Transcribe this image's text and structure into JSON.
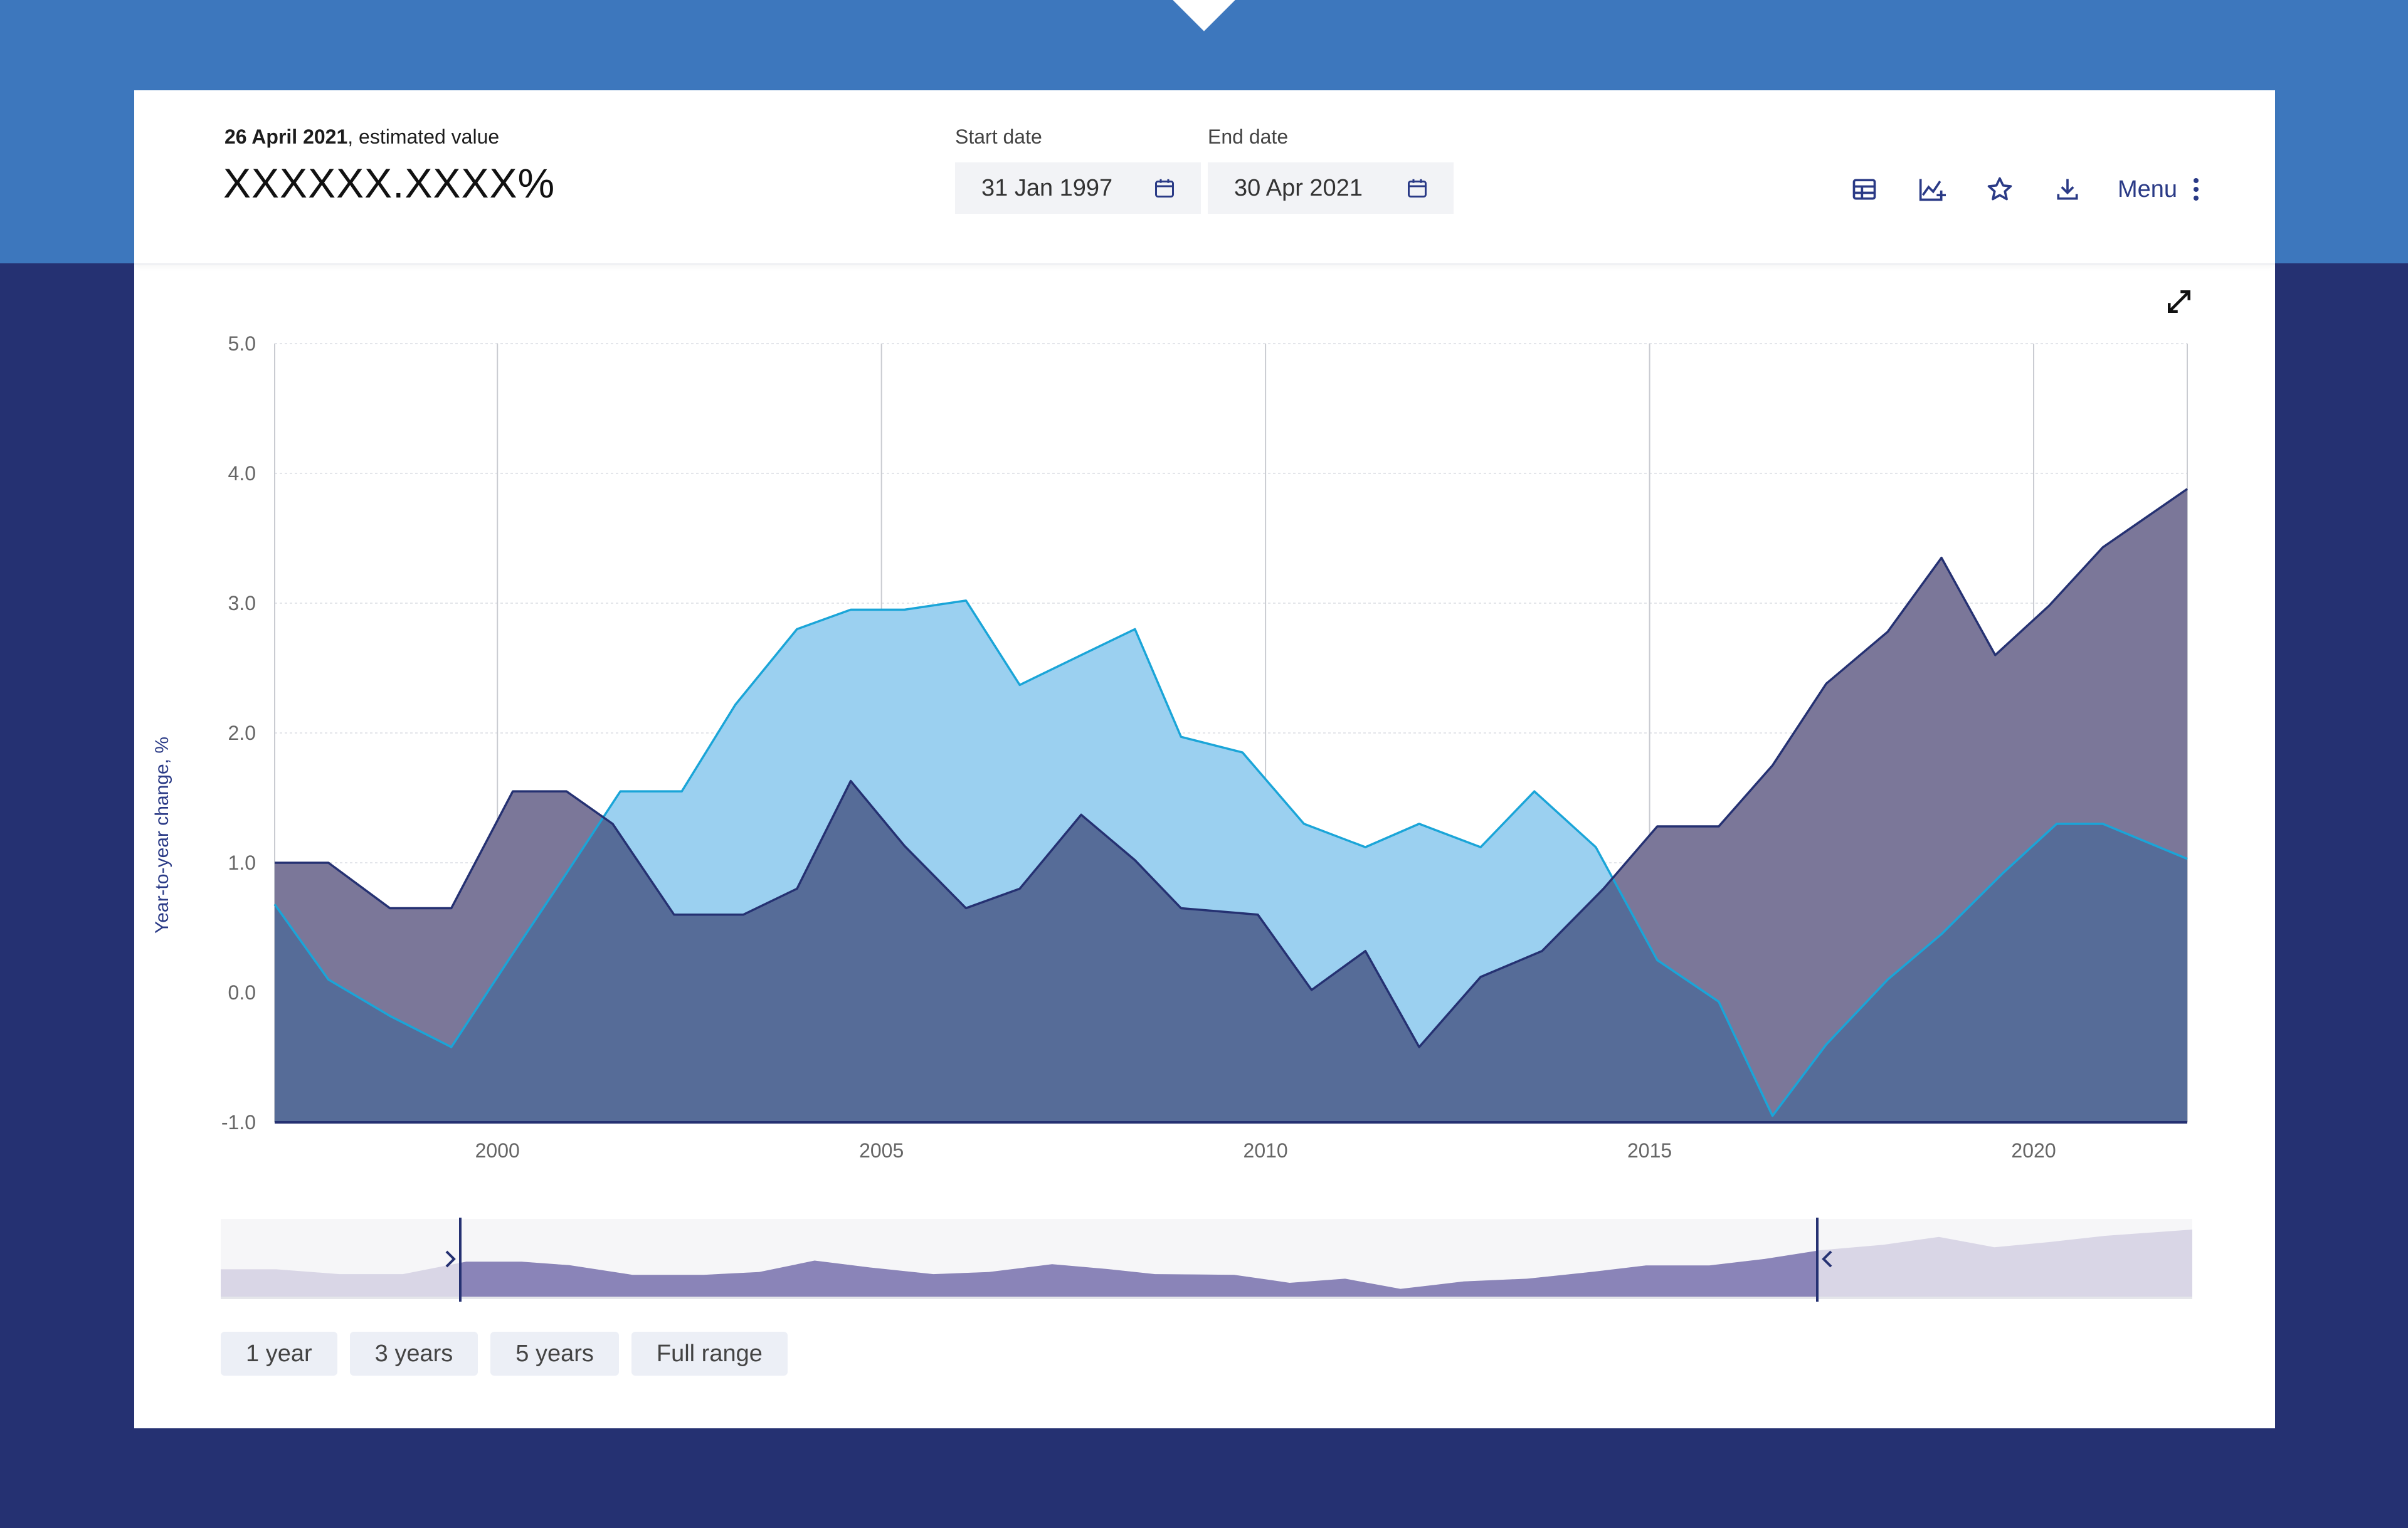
{
  "header": {
    "date_bold": "26 April 2021",
    "date_suffix": ", estimated value",
    "value": "XXXXXX.XXXX%",
    "start_label": "Start date",
    "start_value": "31 Jan 1997",
    "end_label": "End date",
    "end_value": "30 Apr 2021",
    "menu_label": "Menu"
  },
  "icons": [
    "table-icon",
    "chart-add-icon",
    "star-icon",
    "download-icon",
    "more-vertical-icon",
    "expand-icon",
    "calendar-icon"
  ],
  "range_buttons": [
    "1 year",
    "3 years",
    "5 years",
    "Full range"
  ],
  "colors": {
    "top_band": "#3d77bd",
    "background": "#253172",
    "series_dark": "#253172",
    "series_dark_fill": "#7b7799",
    "series_light": "#1aa5d8",
    "series_light_fill": "#9bd0f0",
    "overlap_fill": "#566c98"
  },
  "chart_data": {
    "type": "area",
    "ylabel": "Year-to-year change, %",
    "ylim": [
      -1.0,
      5.0
    ],
    "xlim": [
      1997.1,
      2022.0
    ],
    "y_ticks": [
      "5.0",
      "4.0",
      "3.0",
      "2.0",
      "1.0",
      "0.0",
      "-1.0"
    ],
    "x_ticks": [
      "2000",
      "2005",
      "2010",
      "2015",
      "2020"
    ],
    "grid": true,
    "series": [
      {
        "color": "dark",
        "x": [
          1997.1,
          1997.8,
          1998.6,
          1999.4,
          2000.2,
          2000.9,
          2001.5,
          2002.3,
          2003.2,
          2003.9,
          2004.6,
          2005.3,
          2006.1,
          2006.8,
          2007.6,
          2008.3,
          2008.9,
          2009.9,
          2010.6,
          2011.3,
          2012.0,
          2012.8,
          2013.6,
          2014.4,
          2015.1,
          2015.9,
          2016.6,
          2017.3,
          2018.1,
          2018.8,
          2019.5,
          2020.2,
          2020.9,
          2022.0
        ],
        "y": [
          1.0,
          1.0,
          0.65,
          0.65,
          1.55,
          1.55,
          1.3,
          0.6,
          0.6,
          0.8,
          1.63,
          1.13,
          0.65,
          0.8,
          1.37,
          1.02,
          0.65,
          0.6,
          0.02,
          0.32,
          -0.42,
          0.12,
          0.32,
          0.8,
          1.28,
          1.28,
          1.75,
          2.38,
          2.78,
          3.35,
          2.6,
          2.98,
          3.43,
          3.88
        ]
      },
      {
        "color": "light",
        "x": [
          1997.1,
          1997.8,
          1998.6,
          1999.4,
          2000.2,
          2000.9,
          2001.6,
          2002.4,
          2003.1,
          2003.9,
          2004.6,
          2005.3,
          2006.1,
          2006.8,
          2007.6,
          2008.3,
          2008.9,
          2009.7,
          2010.5,
          2011.3,
          2012.0,
          2012.8,
          2013.5,
          2014.3,
          2015.1,
          2015.9,
          2016.6,
          2017.3,
          2018.1,
          2018.8,
          2019.6,
          2020.3,
          2020.9,
          2022.0
        ],
        "y": [
          0.68,
          0.1,
          -0.18,
          -0.42,
          0.3,
          0.92,
          1.55,
          1.55,
          2.22,
          2.8,
          2.95,
          2.95,
          3.02,
          2.37,
          2.6,
          2.8,
          1.97,
          1.85,
          1.3,
          1.12,
          1.3,
          1.12,
          1.55,
          1.12,
          0.25,
          -0.07,
          -0.95,
          -0.4,
          0.1,
          0.45,
          0.92,
          1.3,
          1.3,
          1.03
        ]
      }
    ]
  }
}
